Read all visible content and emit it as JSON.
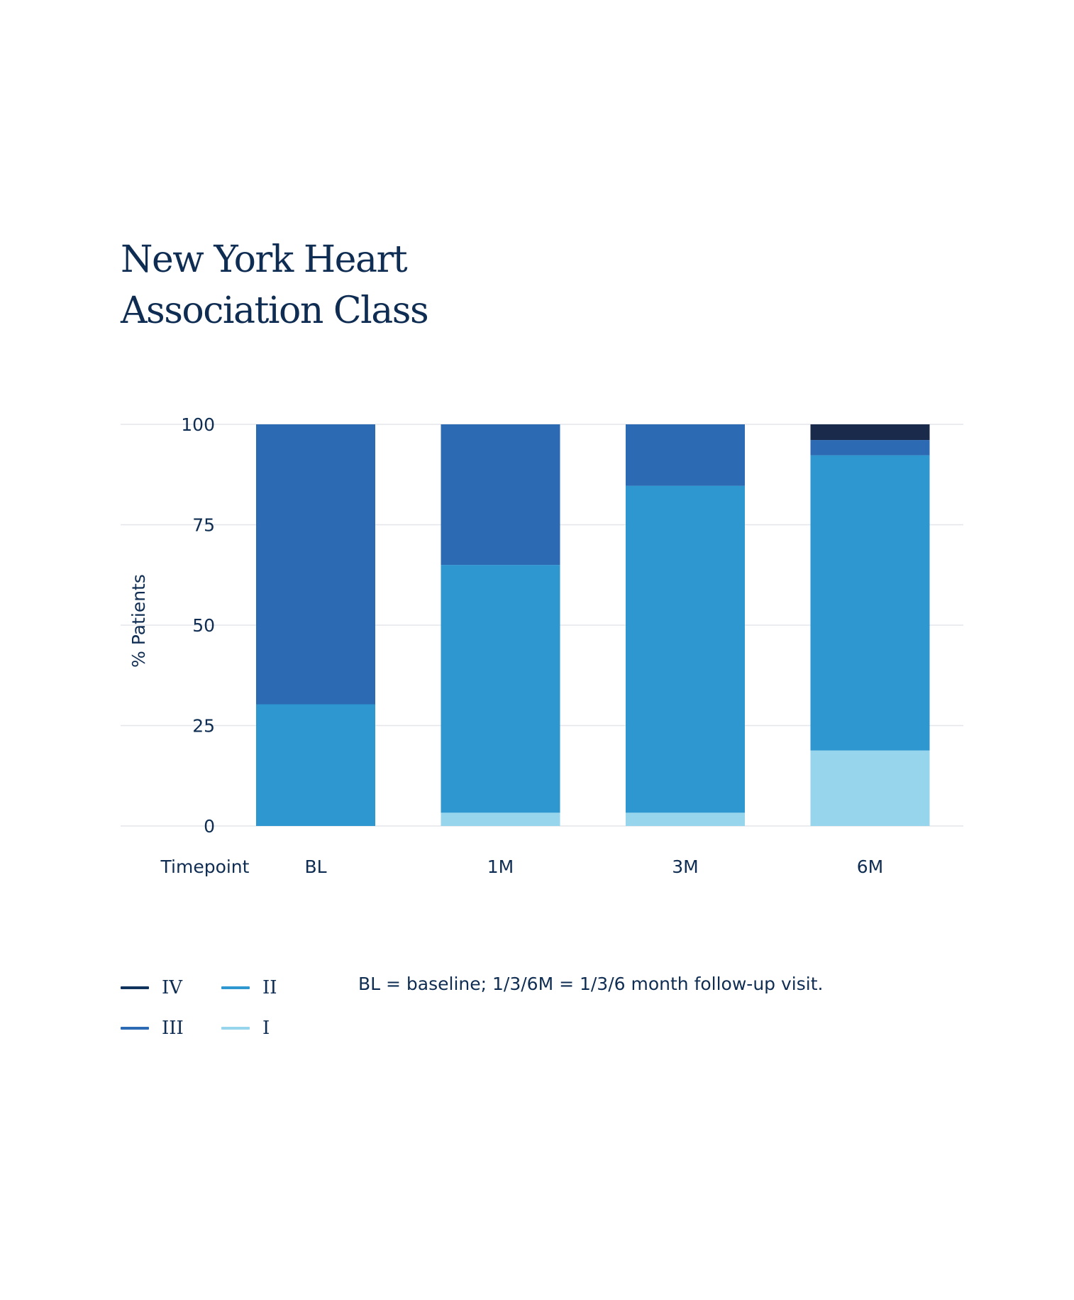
{
  "title_lines": [
    "New York Heart",
    "Association Class"
  ],
  "chart_data": {
    "type": "bar",
    "stacked": true,
    "title": "New York Heart Association Class",
    "xlabel": "Timepoint",
    "ylabel": "% Patients",
    "ylim": [
      0,
      100
    ],
    "yticks": [
      0,
      25,
      50,
      75,
      100
    ],
    "grid": true,
    "categories": [
      "BL",
      "1M",
      "3M",
      "6M"
    ],
    "series": [
      {
        "name": "I",
        "color": "#97d5ec",
        "values": [
          0,
          3.3,
          3.3,
          18.8
        ]
      },
      {
        "name": "II",
        "color": "#2e97d0",
        "values": [
          30.3,
          61.7,
          81.4,
          73.5
        ]
      },
      {
        "name": "III",
        "color": "#2c6bb3",
        "values": [
          69.7,
          35.0,
          15.3,
          3.8
        ]
      },
      {
        "name": "IV",
        "color": "#1a2a4a",
        "values": [
          0,
          0,
          0,
          3.9
        ]
      }
    ],
    "legend_position": "bottom-left",
    "note": "BL = baseline; 1/3/6M = 1/3/6 month follow-up visit."
  },
  "legend": [
    {
      "label": "IV",
      "color": "#10335e"
    },
    {
      "label": "II",
      "color": "#2e97d0"
    },
    {
      "label": "III",
      "color": "#2c6bb3"
    },
    {
      "label": "I",
      "color": "#97d5ec"
    }
  ]
}
